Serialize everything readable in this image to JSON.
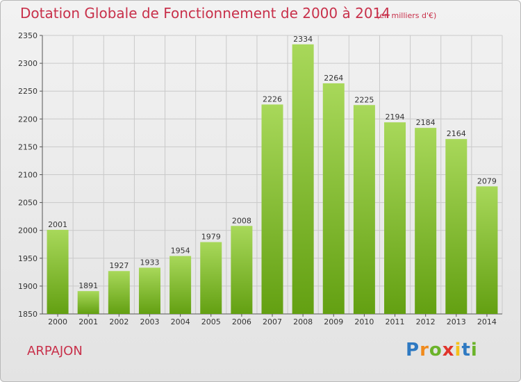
{
  "header": {
    "title": "Dotation Globale de Fonctionnement de 2000 à 2014",
    "subtitle": "(en milliers d'€)"
  },
  "footer": {
    "commune": "ARPAJON",
    "logo": "Proxiti"
  },
  "colors": {
    "title": "#c8304a",
    "bar_top": "#a8d85a",
    "bar_bottom": "#63a012"
  },
  "chart_data": {
    "type": "bar",
    "title": "Dotation Globale de Fonctionnement de 2000 à 2014",
    "subtitle": "(en milliers d'€)",
    "xlabel": "",
    "ylabel": "",
    "categories": [
      "2000",
      "2001",
      "2002",
      "2003",
      "2004",
      "2005",
      "2006",
      "2007",
      "2008",
      "2009",
      "2010",
      "2011",
      "2012",
      "2013",
      "2014"
    ],
    "values": [
      2001,
      1891,
      1927,
      1933,
      1954,
      1979,
      2008,
      2226,
      2334,
      2264,
      2225,
      2194,
      2184,
      2164,
      2079
    ],
    "ylim": [
      1850,
      2350
    ],
    "yticks": [
      1850,
      1900,
      1950,
      2000,
      2050,
      2100,
      2150,
      2200,
      2250,
      2300,
      2350
    ],
    "grid": true
  }
}
